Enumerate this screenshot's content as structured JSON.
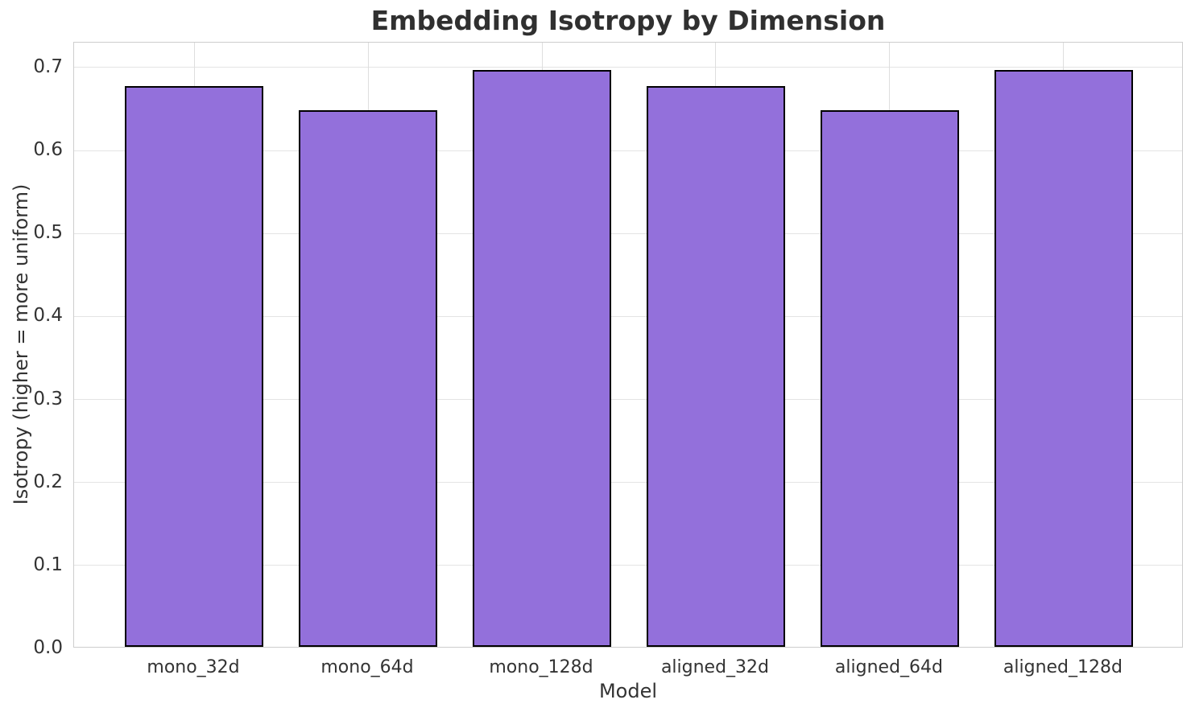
{
  "chart_data": {
    "type": "bar",
    "title": "Embedding Isotropy by Dimension",
    "xlabel": "Model",
    "ylabel": "Isotropy (higher = more uniform)",
    "categories": [
      "mono_32d",
      "mono_64d",
      "mono_128d",
      "aligned_32d",
      "aligned_64d",
      "aligned_128d"
    ],
    "values": [
      0.676,
      0.647,
      0.695,
      0.676,
      0.647,
      0.695
    ],
    "yticks": [
      0.0,
      0.1,
      0.2,
      0.3,
      0.4,
      0.5,
      0.6,
      0.7
    ],
    "ylim": [
      0,
      0.73
    ],
    "xlim": [
      -0.69,
      5.69
    ],
    "bar_width_fraction": 0.8,
    "grid": true,
    "legend": false,
    "colors": {
      "bar_fill": "#9370DB",
      "bar_edge": "#000000",
      "grid_h": "#e4e4e4",
      "grid_v": "#dedede",
      "spine": "#cdcdcd",
      "title_text": "#303030",
      "tick_text": "#333333"
    }
  }
}
